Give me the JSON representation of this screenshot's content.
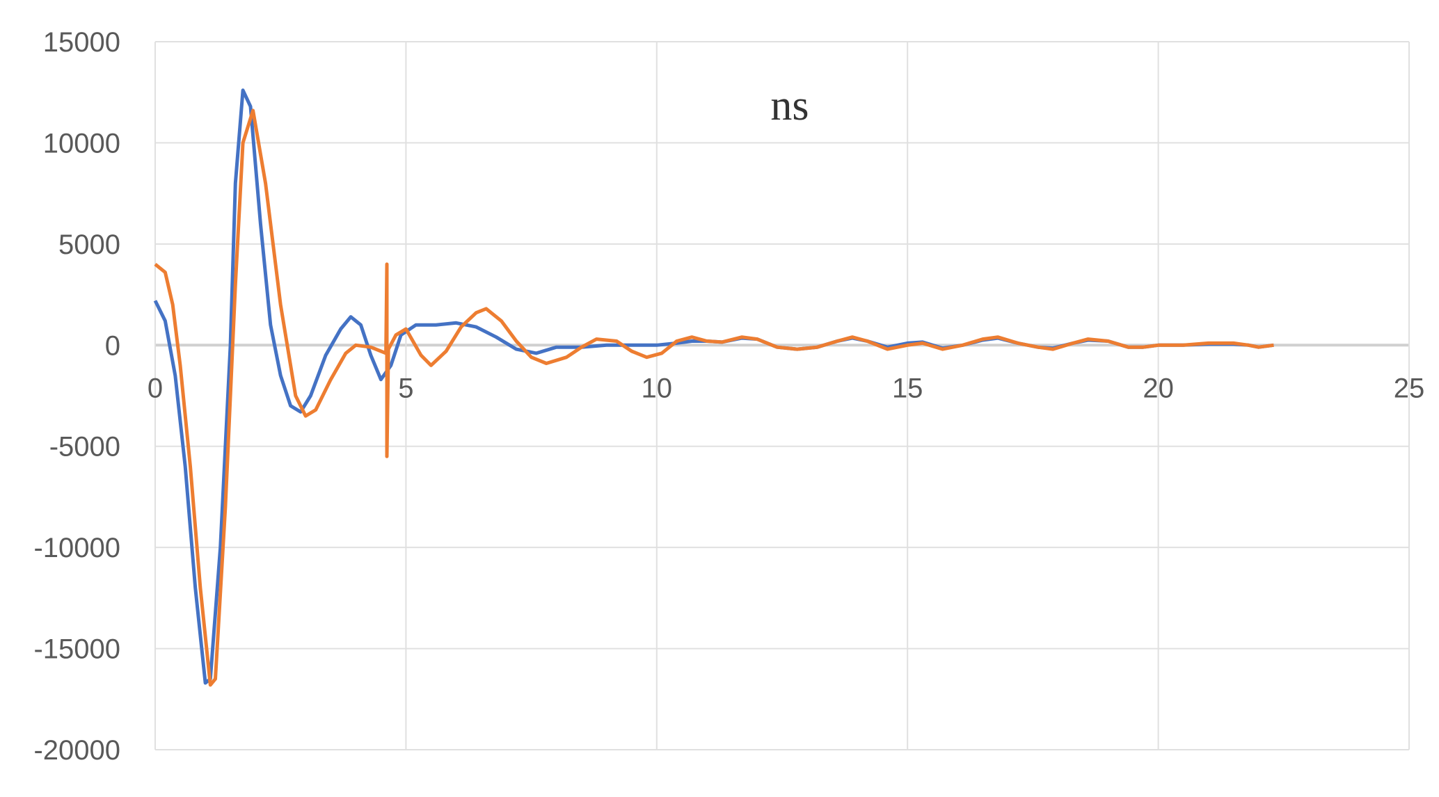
{
  "chart_data": {
    "type": "line",
    "title": "ns",
    "xlabel": "",
    "ylabel": "",
    "xlim": [
      0,
      25
    ],
    "ylim": [
      -20000,
      15000
    ],
    "xticks": [
      "0",
      "5",
      "10",
      "15",
      "20",
      "25"
    ],
    "yticks": [
      "15000",
      "10000",
      "5000",
      "0",
      "-5000",
      "-10000",
      "-15000",
      "-20000"
    ],
    "grid": true,
    "legend": "none",
    "series": [
      {
        "color": "#4472C4",
        "x": [
          0,
          0.2,
          0.4,
          0.6,
          0.8,
          1.0,
          1.1,
          1.3,
          1.5,
          1.6,
          1.75,
          1.9,
          2.1,
          2.3,
          2.5,
          2.7,
          2.9,
          3.1,
          3.4,
          3.7,
          3.9,
          4.1,
          4.3,
          4.5,
          4.7,
          4.9,
          5.2,
          5.6,
          6.0,
          6.4,
          6.8,
          7.2,
          7.6,
          8.0,
          8.5,
          9.0,
          9.5,
          10.0,
          10.4,
          10.7,
          11.0,
          11.3,
          11.7,
          12.0,
          12.4,
          12.8,
          13.2,
          13.6,
          13.9,
          14.2,
          14.6,
          15.0,
          15.3,
          15.7,
          16.1,
          16.5,
          16.8,
          17.2,
          17.6,
          17.9,
          18.3,
          18.6,
          19.0,
          19.4,
          19.7,
          20.0,
          20.5,
          21.0,
          21.5,
          21.8,
          22.0,
          22.3
        ],
        "y": [
          2200,
          1200,
          -1500,
          -6000,
          -12000,
          -16700,
          -16500,
          -10000,
          0,
          8000,
          12600,
          11800,
          6000,
          1000,
          -1500,
          -3000,
          -3300,
          -2500,
          -500,
          800,
          1400,
          1000,
          -500,
          -1700,
          -1000,
          500,
          1000,
          1000,
          1100,
          900,
          400,
          -200,
          -400,
          -100,
          -100,
          0,
          0,
          0,
          100,
          200,
          200,
          150,
          350,
          300,
          -100,
          -200,
          -100,
          200,
          350,
          200,
          -100,
          100,
          150,
          -150,
          0,
          250,
          350,
          100,
          -100,
          -150,
          100,
          250,
          200,
          -100,
          -100,
          0,
          0,
          50,
          50,
          0,
          -100,
          0
        ]
      },
      {
        "color": "#ED7D31",
        "x": [
          0,
          0.2,
          0.35,
          0.5,
          0.7,
          0.9,
          1.1,
          1.2,
          1.4,
          1.6,
          1.75,
          1.95,
          2.2,
          2.5,
          2.8,
          3.0,
          3.2,
          3.5,
          3.8,
          4.0,
          4.3,
          4.5,
          4.6,
          4.62,
          4.62,
          4.65,
          4.8,
          5.0,
          5.3,
          5.5,
          5.8,
          6.1,
          6.4,
          6.6,
          6.9,
          7.2,
          7.5,
          7.8,
          8.2,
          8.5,
          8.8,
          9.2,
          9.5,
          9.8,
          10.1,
          10.4,
          10.7,
          11.0,
          11.3,
          11.7,
          12.0,
          12.4,
          12.8,
          13.2,
          13.6,
          13.9,
          14.2,
          14.6,
          15.0,
          15.3,
          15.7,
          16.1,
          16.5,
          16.8,
          17.2,
          17.6,
          17.9,
          18.3,
          18.6,
          19.0,
          19.4,
          19.7,
          20.0,
          20.5,
          21.0,
          21.5,
          21.8,
          22.0,
          22.3
        ],
        "y": [
          4000,
          3600,
          2000,
          -1000,
          -6000,
          -12000,
          -16800,
          -16500,
          -8000,
          3000,
          10000,
          11600,
          8000,
          2000,
          -2500,
          -3500,
          -3200,
          -1700,
          -400,
          0,
          -100,
          -300,
          -400,
          4000,
          -5500,
          -200,
          500,
          800,
          -500,
          -1000,
          -300,
          900,
          1600,
          1800,
          1200,
          200,
          -600,
          -900,
          -600,
          -100,
          300,
          200,
          -300,
          -600,
          -400,
          200,
          400,
          200,
          150,
          400,
          300,
          -100,
          -200,
          -100,
          200,
          400,
          200,
          -200,
          0,
          100,
          -200,
          0,
          300,
          400,
          100,
          -100,
          -200,
          100,
          300,
          200,
          -100,
          -100,
          0,
          0,
          100,
          100,
          0,
          -100,
          0
        ]
      }
    ]
  }
}
